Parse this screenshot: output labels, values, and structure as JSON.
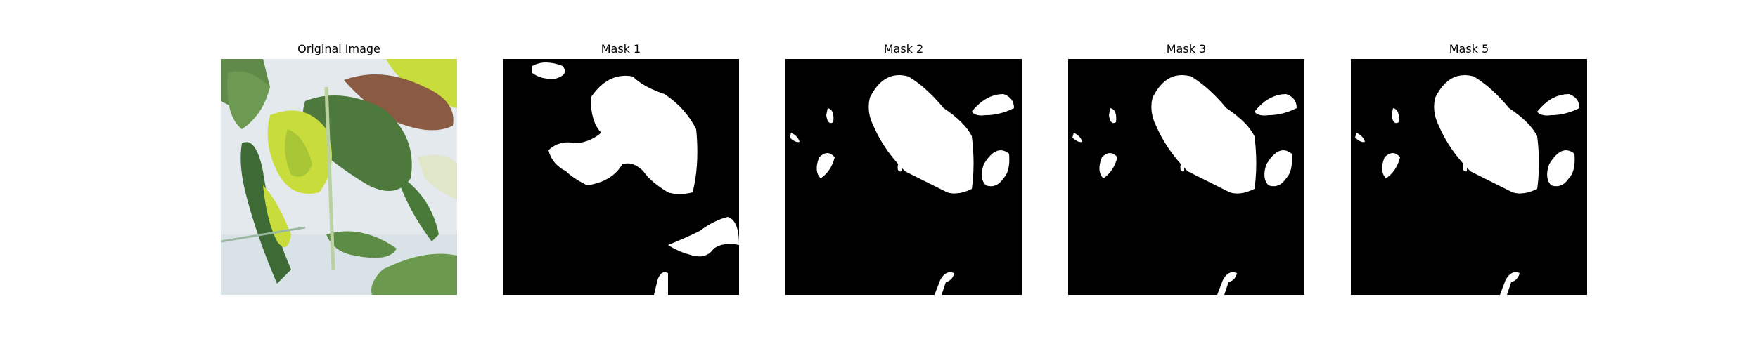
{
  "figure": {
    "panels": [
      {
        "title": "Original Image",
        "kind": "photo"
      },
      {
        "title": "Mask 1",
        "kind": "mask"
      },
      {
        "title": "Mask 2",
        "kind": "mask"
      },
      {
        "title": "Mask 3",
        "kind": "mask"
      },
      {
        "title": "Mask 5",
        "kind": "mask"
      }
    ]
  },
  "colors": {
    "mask_background": "#000000",
    "mask_foreground": "#ffffff",
    "photo_background": "#e3e9ec",
    "leaf_dark": "#4d7a3c",
    "leaf_light": "#c8dc3c",
    "leaf_brown": "#8a5a42"
  }
}
